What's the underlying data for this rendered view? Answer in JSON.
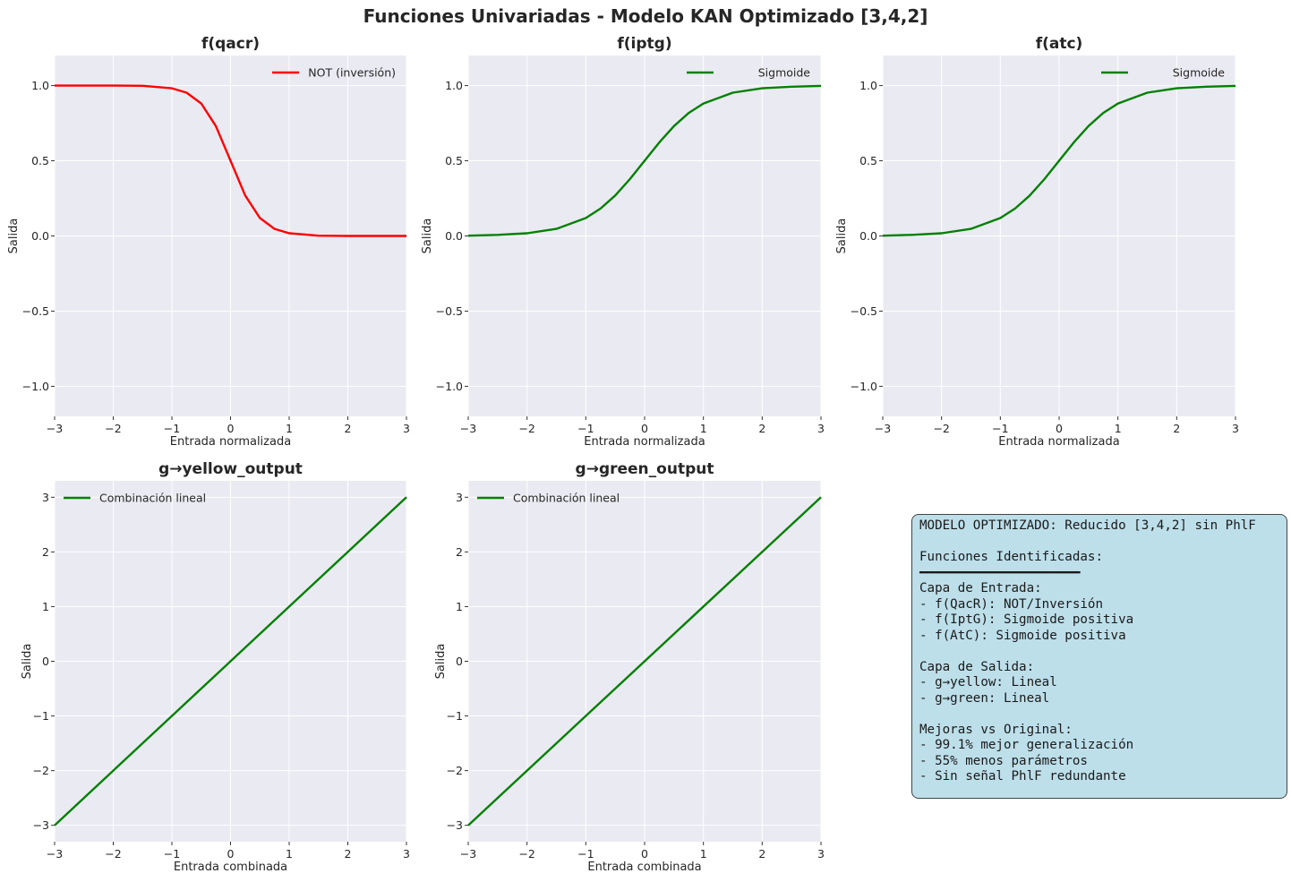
{
  "figure": {
    "title": "Funciones Univariadas - Modelo KAN Optimizado [3,4,2]"
  },
  "chart_data": [
    {
      "type": "line",
      "title": "f(qacr)",
      "xlabel": "Entrada normalizada",
      "ylabel": "Salida",
      "xlim": [
        -3,
        3
      ],
      "ylim": [
        -1.2,
        1.2
      ],
      "xticks": [
        -3,
        -2,
        -1,
        0,
        1,
        2,
        3
      ],
      "yticks": [
        -1.0,
        -0.5,
        0.0,
        0.5,
        1.0
      ],
      "xtick_labels": [
        "−3",
        "−2",
        "−1",
        "0",
        "1",
        "2",
        "3"
      ],
      "ytick_labels": [
        "−1.0",
        "−0.5",
        "0.0",
        "0.5",
        "1.0"
      ],
      "grid": true,
      "legend_position": "upper-right",
      "series": [
        {
          "name": "NOT (inversión)",
          "color": "#ff0000",
          "x": [
            -3,
            -2.5,
            -2,
            -1.5,
            -1,
            -0.75,
            -0.5,
            -0.25,
            0,
            0.25,
            0.5,
            0.75,
            1,
            1.5,
            2,
            2.5,
            3
          ],
          "y": [
            1.0,
            1.0,
            1.0,
            0.999,
            0.982,
            0.953,
            0.881,
            0.731,
            0.5,
            0.269,
            0.119,
            0.047,
            0.018,
            0.002,
            0.0,
            0.0,
            0.0
          ]
        }
      ]
    },
    {
      "type": "line",
      "title": "f(iptg)",
      "xlabel": "Entrada normalizada",
      "ylabel": "Salida",
      "xlim": [
        -3,
        3
      ],
      "ylim": [
        -1.2,
        1.2
      ],
      "xticks": [
        -3,
        -2,
        -1,
        0,
        1,
        2,
        3
      ],
      "yticks": [
        -1.0,
        -0.5,
        0.0,
        0.5,
        1.0
      ],
      "xtick_labels": [
        "−3",
        "−2",
        "−1",
        "0",
        "1",
        "2",
        "3"
      ],
      "ytick_labels": [
        "−1.0",
        "−0.5",
        "0.0",
        "0.5",
        "1.0"
      ],
      "grid": true,
      "legend_position": "upper-right",
      "series": [
        {
          "name": "Sigmoide",
          "color": "#008000",
          "x": [
            -3,
            -2.5,
            -2,
            -1.5,
            -1,
            -0.75,
            -0.5,
            -0.25,
            0,
            0.25,
            0.5,
            0.75,
            1,
            1.5,
            2,
            2.5,
            3
          ],
          "y": [
            0.002,
            0.007,
            0.018,
            0.047,
            0.119,
            0.182,
            0.269,
            0.378,
            0.5,
            0.622,
            0.731,
            0.818,
            0.881,
            0.953,
            0.982,
            0.993,
            0.998
          ]
        }
      ]
    },
    {
      "type": "line",
      "title": "f(atc)",
      "xlabel": "Entrada normalizada",
      "ylabel": "Salida",
      "xlim": [
        -3,
        3
      ],
      "ylim": [
        -1.2,
        1.2
      ],
      "xticks": [
        -3,
        -2,
        -1,
        0,
        1,
        2,
        3
      ],
      "yticks": [
        -1.0,
        -0.5,
        0.0,
        0.5,
        1.0
      ],
      "xtick_labels": [
        "−3",
        "−2",
        "−1",
        "0",
        "1",
        "2",
        "3"
      ],
      "ytick_labels": [
        "−1.0",
        "−0.5",
        "0.0",
        "0.5",
        "1.0"
      ],
      "grid": true,
      "legend_position": "upper-right",
      "series": [
        {
          "name": "Sigmoide",
          "color": "#008000",
          "x": [
            -3,
            -2.5,
            -2,
            -1.5,
            -1,
            -0.75,
            -0.5,
            -0.25,
            0,
            0.25,
            0.5,
            0.75,
            1,
            1.5,
            2,
            2.5,
            3
          ],
          "y": [
            0.002,
            0.007,
            0.018,
            0.047,
            0.119,
            0.182,
            0.269,
            0.378,
            0.5,
            0.622,
            0.731,
            0.818,
            0.881,
            0.953,
            0.982,
            0.993,
            0.998
          ]
        }
      ]
    },
    {
      "type": "line",
      "title": "g→yellow_output",
      "xlabel": "Entrada combinada",
      "ylabel": "Salida",
      "xlim": [
        -3,
        3
      ],
      "ylim": [
        -3.3,
        3.3
      ],
      "xticks": [
        -3,
        -2,
        -1,
        0,
        1,
        2,
        3
      ],
      "yticks": [
        -3,
        -2,
        -1,
        0,
        1,
        2,
        3
      ],
      "xtick_labels": [
        "−3",
        "−2",
        "−1",
        "0",
        "1",
        "2",
        "3"
      ],
      "ytick_labels": [
        "−3",
        "−2",
        "−1",
        "0",
        "1",
        "2",
        "3"
      ],
      "grid": true,
      "legend_position": "upper-left",
      "series": [
        {
          "name": "Combinación lineal",
          "color": "#008000",
          "x": [
            -3,
            3
          ],
          "y": [
            -3,
            3
          ]
        }
      ]
    },
    {
      "type": "line",
      "title": "g→green_output",
      "xlabel": "Entrada combinada",
      "ylabel": "Salida",
      "xlim": [
        -3,
        3
      ],
      "ylim": [
        -3.3,
        3.3
      ],
      "xticks": [
        -3,
        -2,
        -1,
        0,
        1,
        2,
        3
      ],
      "yticks": [
        -3,
        -2,
        -1,
        0,
        1,
        2,
        3
      ],
      "xtick_labels": [
        "−3",
        "−2",
        "−1",
        "0",
        "1",
        "2",
        "3"
      ],
      "ytick_labels": [
        "−3",
        "−2",
        "−1",
        "0",
        "1",
        "2",
        "3"
      ],
      "grid": true,
      "legend_position": "upper-left",
      "series": [
        {
          "name": "Combinación lineal",
          "color": "#008000",
          "x": [
            -3,
            3
          ],
          "y": [
            -3,
            3
          ]
        }
      ]
    }
  ],
  "info_box": {
    "background_color": "#bddfea",
    "lines": [
      "MODELO OPTIMIZADO: Reducido [3,4,2] sin PhlF",
      "",
      "Funciones Identificadas:",
      "━━━━━━━━━━━━━━━━━━━━━",
      "Capa de Entrada:",
      "- f(QacR): NOT/Inversión",
      "- f(IptG): Sigmoide positiva",
      "- f(AtC): Sigmoide positiva",
      "",
      "Capa de Salida:",
      "- g→yellow: Lineal",
      "- g→green: Lineal",
      "",
      "Mejoras vs Original:",
      "- 99.1% mejor generalización",
      "- 55% menos parámetros",
      "- Sin señal PhlF redundante"
    ]
  }
}
